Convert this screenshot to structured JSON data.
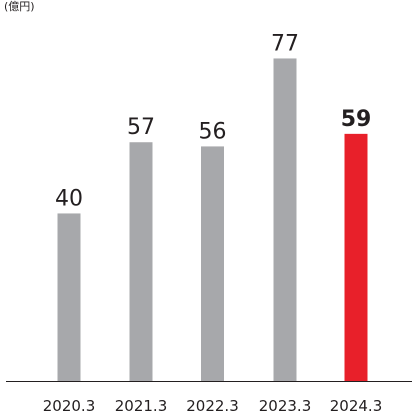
{
  "chart_data": {
    "type": "bar",
    "unit_label": "(億円)",
    "categories": [
      "2020.3",
      "2021.3",
      "2022.3",
      "2023.3",
      "2024.3"
    ],
    "values": [
      40,
      57,
      56,
      77,
      59
    ],
    "ylim": [
      0,
      90
    ],
    "grid": false,
    "highlight_index": 4,
    "colors": {
      "bar": "#a7a8ab",
      "highlight": "#e8202a",
      "axis": "#231f20",
      "text": "#231f20"
    }
  }
}
